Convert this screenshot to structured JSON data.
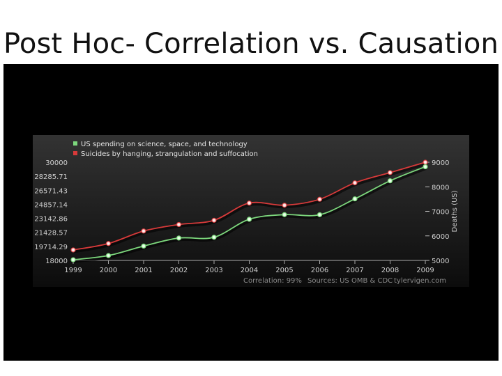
{
  "slide": {
    "title": "Post Hoc- Correlation vs. Causation"
  },
  "chart_data": {
    "type": "line",
    "x": [
      "1999",
      "2000",
      "2001",
      "2002",
      "2003",
      "2004",
      "2005",
      "2006",
      "2007",
      "2008",
      "2009"
    ],
    "series": [
      {
        "name": "US spending on science, space, and technology",
        "color": "#7dd87d",
        "axis": "left",
        "values": [
          18079,
          18594,
          19753,
          20734,
          20831,
          23029,
          23597,
          23584,
          25525,
          27731,
          29449
        ]
      },
      {
        "name": "Suicides by hanging, strangulation and suffocation",
        "color": "#d83a3a",
        "axis": "right",
        "values": [
          5427,
          5688,
          6198,
          6462,
          6635,
          7336,
          7248,
          7491,
          8161,
          8578,
          9000
        ]
      }
    ],
    "y_left": {
      "ticks": [
        "30000",
        "28285.71",
        "26571.43",
        "24857.14",
        "23142.86",
        "21428.57",
        "19714.29",
        "18000"
      ],
      "range": [
        18000,
        30000
      ]
    },
    "y_right": {
      "ticks": [
        "9000",
        "8000",
        "7000",
        "6000",
        "5000"
      ],
      "range": [
        5000,
        9000
      ],
      "label": "Deaths (US)"
    },
    "footer": {
      "correlation": "Correlation: 99%",
      "sources": "Sources: US OMB & CDC",
      "site": "tylervigen.com"
    },
    "grid": false,
    "legend_position": "top-left"
  }
}
